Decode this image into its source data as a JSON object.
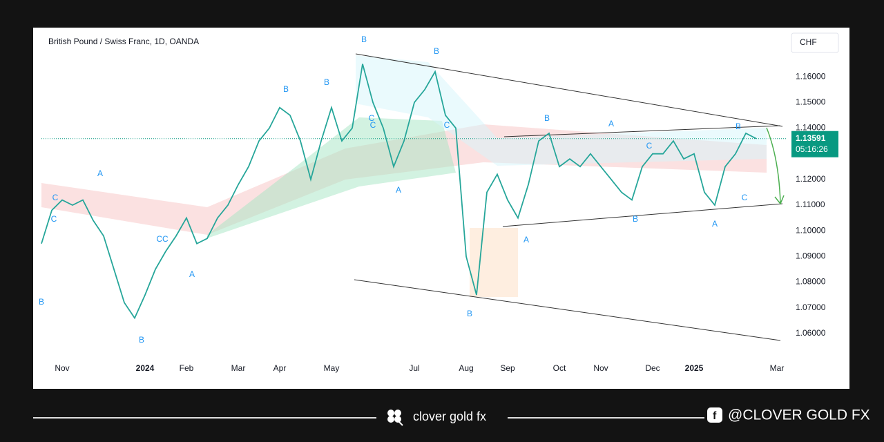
{
  "chart_data": {
    "type": "line",
    "title": "British Pound / Swiss Franc, 1D, OANDA",
    "currency": "CHF",
    "countdown": "05:16:26",
    "color": "#26a69a",
    "grid": false,
    "categories": [
      null,
      null,
      "Nov",
      null,
      null,
      null,
      null,
      null,
      null,
      null,
      "2024",
      null,
      null,
      null,
      "Feb",
      null,
      null,
      null,
      null,
      "Mar",
      null,
      null,
      null,
      "Apr",
      null,
      null,
      null,
      null,
      "May",
      null,
      null,
      null,
      null,
      null,
      null,
      null,
      "Jul",
      null,
      null,
      null,
      null,
      "Aug",
      null,
      null,
      null,
      "Sep",
      null,
      null,
      null,
      null,
      "Oct",
      null,
      null,
      null,
      "Nov",
      null,
      null,
      null,
      null,
      "Dec",
      null,
      null,
      null,
      "2025",
      null,
      null,
      null,
      null,
      null,
      null,
      null,
      "Mar"
    ],
    "values": [
      1.095,
      1.108,
      1.112,
      1.11,
      1.112,
      1.104,
      1.098,
      1.085,
      1.072,
      1.066,
      1.075,
      1.085,
      1.092,
      1.098,
      1.105,
      1.095,
      1.097,
      1.105,
      1.11,
      1.118,
      1.125,
      1.135,
      1.14,
      1.148,
      1.145,
      1.135,
      1.12,
      1.135,
      1.148,
      1.135,
      1.14,
      1.165,
      1.15,
      1.14,
      1.125,
      1.135,
      1.15,
      1.155,
      1.162,
      1.145,
      1.14,
      1.09,
      1.075,
      1.115,
      1.122,
      1.112,
      1.105,
      1.118,
      1.135,
      1.138,
      1.125,
      1.128,
      1.125,
      1.13,
      1.125,
      1.12,
      1.115,
      1.112,
      1.125,
      1.13,
      1.13,
      1.135,
      1.128,
      1.13,
      1.115,
      1.11,
      1.125,
      1.13,
      1.138,
      1.13591,
      null,
      null
    ],
    "ylim": [
      1.05,
      1.177
    ],
    "yticks": [
      {
        "value": 1.06,
        "label": "1.06000"
      },
      {
        "value": 1.07,
        "label": "1.07000"
      },
      {
        "value": 1.08,
        "label": "1.08000"
      },
      {
        "value": 1.09,
        "label": "1.09000"
      },
      {
        "value": 1.1,
        "label": "1.10000"
      },
      {
        "value": 1.11,
        "label": "1.11000"
      },
      {
        "value": 1.12,
        "label": "1.12000"
      },
      {
        "value": 1.13,
        "label": "1.13000"
      },
      {
        "value": 1.14,
        "label": "1.14000"
      },
      {
        "value": 1.15,
        "label": "1.15000"
      },
      {
        "value": 1.16,
        "label": "1.16000"
      }
    ],
    "annotations": [
      "B",
      "B",
      "B",
      "B",
      "A",
      "C",
      "C",
      "CC",
      "A",
      "B",
      "C",
      "C",
      "A",
      "B",
      "B",
      "A",
      "C",
      "B",
      "A",
      "B",
      "C",
      "A",
      "C",
      "B"
    ]
  },
  "footer": {
    "brand": "clover gold fx",
    "handle": "@CLOVER GOLD FX"
  }
}
